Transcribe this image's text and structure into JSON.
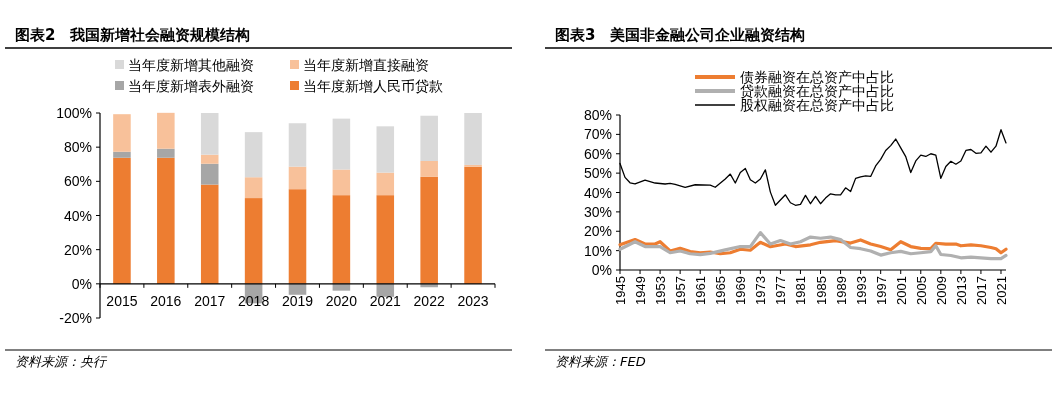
{
  "chart_data": [
    {
      "type": "bar",
      "title": "图表2　我国新增社会融资规模结构",
      "stacked": true,
      "legend": "top",
      "categories": [
        "2015",
        "2016",
        "2017",
        "2018",
        "2019",
        "2020",
        "2021",
        "2022",
        "2023"
      ],
      "ylim": [
        -20,
        100
      ],
      "yticks": [
        {
          "value": -20,
          "label": "-20%"
        },
        {
          "value": 0,
          "label": "0%"
        },
        {
          "value": 20,
          "label": "20%"
        },
        {
          "value": 40,
          "label": "40%"
        },
        {
          "value": 60,
          "label": "60%"
        },
        {
          "value": 80,
          "label": "80%"
        },
        {
          "value": 100,
          "label": "100%"
        }
      ],
      "series": [
        {
          "name": "当年度新增人民币贷款",
          "color": "#ed7d31",
          "values": [
            73.8,
            73.8,
            58.1,
            50.2,
            55.4,
            51.9,
            51.9,
            62.6,
            68.5
          ]
        },
        {
          "name": "当年度新增表外融资",
          "color": "#a6a6a6",
          "values": [
            3.5,
            5.3,
            12.2,
            -11.4,
            -6.4,
            -4,
            -7.6,
            -2,
            0
          ]
        },
        {
          "name": "当年度新增直接融资",
          "color": "#f8c19a",
          "values": [
            22,
            21,
            5.3,
            12.2,
            13.2,
            15,
            13.2,
            9.3,
            1.1
          ]
        },
        {
          "name": "当年度新增其他融资",
          "color": "#d9d9d9",
          "values": [
            0,
            0,
            24.4,
            26.4,
            25.4,
            29.8,
            27.1,
            26.5,
            30.4
          ]
        }
      ],
      "annotations": [
        "资料来源：央行"
      ]
    },
    {
      "type": "line",
      "title": "图表3　美国非金融公司企业融资结构",
      "legend": "top",
      "line_style": "solid",
      "xlim": [
        1945,
        2022
      ],
      "xticks": [
        1945,
        1949,
        1953,
        1957,
        1961,
        1965,
        1969,
        1973,
        1977,
        1981,
        1985,
        1989,
        1993,
        1997,
        2001,
        2005,
        2009,
        2013,
        2017,
        2021
      ],
      "ylim": [
        0,
        80
      ],
      "yticks": [
        {
          "value": 0,
          "label": "0%"
        },
        {
          "value": 10,
          "label": "10%"
        },
        {
          "value": 20,
          "label": "20%"
        },
        {
          "value": 30,
          "label": "30%"
        },
        {
          "value": 40,
          "label": "40%"
        },
        {
          "value": 50,
          "label": "50%"
        },
        {
          "value": 60,
          "label": "60%"
        },
        {
          "value": 70,
          "label": "70%"
        },
        {
          "value": 80,
          "label": "80%"
        }
      ],
      "series": [
        {
          "name": "债券融资在总资产中占比",
          "color": "#ed7d31",
          "x": [
            1945,
            1948,
            1950,
            1952,
            1953,
            1955,
            1957,
            1959,
            1961,
            1963,
            1965,
            1967,
            1969,
            1971,
            1973,
            1975,
            1978,
            1980,
            1983,
            1985,
            1988,
            1991,
            1993,
            1995,
            1997,
            1999,
            2001,
            2003,
            2005,
            2007,
            2008,
            2010,
            2012,
            2013,
            2015,
            2017,
            2019,
            2020,
            2021,
            2022
          ],
          "values": [
            13,
            15.7,
            13.4,
            13.4,
            14.6,
            9.8,
            11.2,
            9.5,
            8.9,
            9.3,
            8.4,
            8.9,
            10.7,
            10.2,
            14.3,
            12,
            13.4,
            12.1,
            13,
            14.3,
            15.2,
            13.9,
            15.5,
            13.4,
            12.1,
            10.4,
            14.6,
            12.1,
            11.2,
            11,
            13.8,
            13.4,
            13.4,
            12.5,
            13,
            12.5,
            11.6,
            11,
            8.9,
            10.7
          ]
        },
        {
          "name": "贷款融资在总资产中占比",
          "color": "#b0b0b0",
          "x": [
            1945,
            1948,
            1950,
            1953,
            1955,
            1957,
            1959,
            1961,
            1963,
            1966,
            1969,
            1971,
            1973,
            1975,
            1977,
            1979,
            1981,
            1983,
            1985,
            1987,
            1989,
            1991,
            1993,
            1995,
            1997,
            1999,
            2001,
            2003,
            2005,
            2007,
            2008,
            2009,
            2011,
            2013,
            2015,
            2017,
            2019,
            2021,
            2022
          ],
          "values": [
            10.7,
            14.6,
            12.1,
            12.1,
            8.9,
            9.8,
            8.4,
            7.9,
            8.6,
            10.4,
            12.1,
            12.1,
            19.3,
            13.4,
            15.2,
            13.4,
            14.6,
            17,
            16.4,
            17,
            15.7,
            11.6,
            11,
            9.8,
            7.7,
            8.9,
            9.6,
            8.4,
            8.9,
            9.5,
            12.5,
            8,
            7.5,
            6.3,
            6.6,
            6.3,
            5.9,
            5.9,
            7.5
          ]
        },
        {
          "name": "股权融资在总资产中占比",
          "color": "#000000",
          "x": [
            1945,
            1946,
            1947,
            1948,
            1950,
            1952,
            1954,
            1955,
            1956,
            1958,
            1960,
            1963,
            1964,
            1966,
            1967,
            1968,
            1969,
            1970,
            1971,
            1972,
            1973,
            1974,
            1975,
            1976,
            1978,
            1979,
            1980,
            1981,
            1982,
            1983,
            1984,
            1985,
            1986,
            1987,
            1988,
            1989,
            1990,
            1991,
            1992,
            1993,
            1994,
            1995,
            1996,
            1997,
            1998,
            1999,
            2000,
            2001,
            2002,
            2003,
            2004,
            2005,
            2006,
            2007,
            2008,
            2009,
            2010,
            2011,
            2012,
            2013,
            2014,
            2015,
            2016,
            2017,
            2018,
            2019,
            2020,
            2021,
            2022
          ],
          "values": [
            55,
            47.8,
            45,
            44.4,
            46.4,
            44.9,
            44.4,
            44.7,
            44.2,
            42.7,
            44,
            43.8,
            42.7,
            47,
            49.5,
            44.9,
            50.3,
            52.4,
            46.6,
            44.9,
            47,
            51.7,
            40.2,
            33.4,
            38.8,
            34.7,
            33.4,
            33.9,
            38.5,
            34.2,
            38,
            34.2,
            37.1,
            39.3,
            38.8,
            38.8,
            42.4,
            40.5,
            47.3,
            48.1,
            48.6,
            48.3,
            53.7,
            57.1,
            61.7,
            64.2,
            67.6,
            63,
            58.5,
            50.3,
            56.3,
            59.3,
            58.6,
            60,
            59.3,
            47.3,
            53.4,
            56.1,
            54.6,
            56.3,
            61.7,
            62.2,
            60.2,
            60.5,
            63.9,
            60.8,
            63.9,
            72.4,
            65.6
          ]
        }
      ],
      "annotations": [
        "资料来源：FED"
      ]
    }
  ]
}
